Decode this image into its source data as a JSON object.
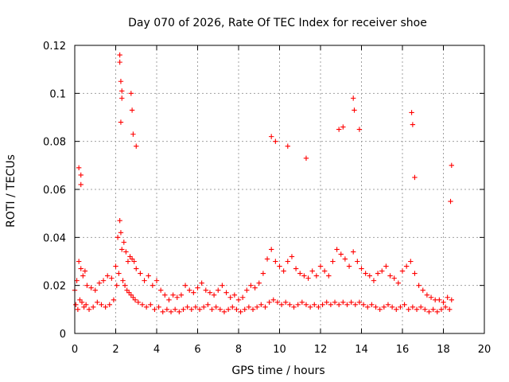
{
  "chart_data": {
    "type": "scatter",
    "title": "Day 070 of 2026, Rate Of TEC Index for receiver shoe",
    "xlabel": "GPS time / hours",
    "ylabel": "ROTI / TECUs",
    "xlim": [
      0,
      20
    ],
    "ylim": [
      0,
      0.12
    ],
    "x_ticks": [
      0,
      2,
      4,
      6,
      8,
      10,
      12,
      14,
      16,
      18,
      20
    ],
    "y_ticks": [
      0,
      0.02,
      0.04,
      0.06,
      0.08,
      0.1,
      0.12
    ],
    "x_tick_labels": [
      "0",
      "2",
      "4",
      "6",
      "8",
      "10",
      "12",
      "14",
      "16",
      "18",
      "20"
    ],
    "y_tick_labels": [
      "0",
      "0.02",
      "0.04",
      "0.06",
      "0.08",
      "0.1",
      "0.12"
    ],
    "grid": true,
    "marker": "+",
    "marker_color": "#ff0000",
    "series": [
      {
        "name": "ROTI",
        "x": [
          0.0,
          0.1,
          0.2,
          0.3,
          0.4,
          0.5,
          0.6,
          0.8,
          1.0,
          1.2,
          1.4,
          1.6,
          1.8,
          2.0,
          2.1,
          2.2,
          2.25,
          2.3,
          2.4,
          2.5,
          2.6,
          2.7,
          2.8,
          2.9,
          3.0,
          3.2,
          3.4,
          3.6,
          3.8,
          4.0,
          4.2,
          4.4,
          4.6,
          4.8,
          5.0,
          5.2,
          5.4,
          5.6,
          5.8,
          6.0,
          6.2,
          6.4,
          6.6,
          6.8,
          7.0,
          7.2,
          7.4,
          7.6,
          7.8,
          8.0,
          8.2,
          8.4,
          8.6,
          8.8,
          9.0,
          9.2,
          9.4,
          9.6,
          9.8,
          10.0,
          10.2,
          10.4,
          10.6,
          10.8,
          11.0,
          11.2,
          11.4,
          11.6,
          11.8,
          12.0,
          12.2,
          12.4,
          12.6,
          12.8,
          13.0,
          13.2,
          13.4,
          13.6,
          13.8,
          14.0,
          14.2,
          14.4,
          14.6,
          14.8,
          15.0,
          15.2,
          15.4,
          15.6,
          15.8,
          16.0,
          16.2,
          16.4,
          16.6,
          16.8,
          17.0,
          17.2,
          17.4,
          17.6,
          17.8,
          18.0,
          18.2,
          18.4,
          0.05,
          0.15,
          0.25,
          0.35,
          0.45,
          0.55,
          0.7,
          0.9,
          1.1,
          1.3,
          1.5,
          1.7,
          1.9,
          2.05,
          2.15,
          2.35,
          2.45,
          2.55,
          2.65,
          2.75,
          2.85,
          2.95,
          3.1,
          3.3,
          3.5,
          3.7,
          3.9,
          4.1,
          4.3,
          4.5,
          4.7,
          4.9,
          5.1,
          5.3,
          5.5,
          5.7,
          5.9,
          6.1,
          6.3,
          6.5,
          6.7,
          6.9,
          7.1,
          7.3,
          7.5,
          7.7,
          7.9,
          8.1,
          8.3,
          8.5,
          8.7,
          8.9,
          9.1,
          9.3,
          9.5,
          9.7,
          9.9,
          10.1,
          10.3,
          10.5,
          10.7,
          10.9,
          11.1,
          11.3,
          11.5,
          11.7,
          11.9,
          12.1,
          12.3,
          12.5,
          12.7,
          12.9,
          13.1,
          13.3,
          13.5,
          13.7,
          13.9,
          14.1,
          14.3,
          14.5,
          14.7,
          14.9,
          15.1,
          15.3,
          15.5,
          15.7,
          15.9,
          16.1,
          16.3,
          16.5,
          16.7,
          16.9,
          17.1,
          17.3,
          17.5,
          17.7,
          17.9,
          18.1,
          18.3,
          0.2,
          0.3,
          0.3,
          2.2,
          2.2,
          2.25,
          2.3,
          2.3,
          2.25,
          2.75,
          2.8,
          2.85,
          3.0,
          9.6,
          9.8,
          10.4,
          11.3,
          12.9,
          13.1,
          13.6,
          13.65,
          13.9,
          16.45,
          16.5,
          16.6,
          18.4,
          18.35
        ],
        "y": [
          0.018,
          0.022,
          0.03,
          0.027,
          0.024,
          0.026,
          0.02,
          0.019,
          0.018,
          0.021,
          0.022,
          0.024,
          0.023,
          0.028,
          0.04,
          0.047,
          0.042,
          0.035,
          0.038,
          0.034,
          0.03,
          0.032,
          0.031,
          0.03,
          0.027,
          0.025,
          0.022,
          0.024,
          0.02,
          0.022,
          0.018,
          0.016,
          0.014,
          0.016,
          0.015,
          0.016,
          0.02,
          0.018,
          0.017,
          0.019,
          0.021,
          0.018,
          0.017,
          0.016,
          0.018,
          0.02,
          0.017,
          0.015,
          0.016,
          0.014,
          0.015,
          0.018,
          0.02,
          0.019,
          0.021,
          0.025,
          0.031,
          0.035,
          0.03,
          0.028,
          0.026,
          0.03,
          0.032,
          0.027,
          0.025,
          0.024,
          0.023,
          0.026,
          0.024,
          0.028,
          0.026,
          0.024,
          0.03,
          0.035,
          0.033,
          0.031,
          0.028,
          0.034,
          0.03,
          0.027,
          0.025,
          0.024,
          0.022,
          0.025,
          0.026,
          0.028,
          0.024,
          0.023,
          0.021,
          0.026,
          0.028,
          0.03,
          0.025,
          0.02,
          0.018,
          0.016,
          0.015,
          0.014,
          0.014,
          0.013,
          0.015,
          0.014,
          0.012,
          0.01,
          0.014,
          0.013,
          0.011,
          0.012,
          0.01,
          0.011,
          0.013,
          0.012,
          0.011,
          0.012,
          0.014,
          0.02,
          0.025,
          0.022,
          0.02,
          0.018,
          0.017,
          0.016,
          0.015,
          0.014,
          0.013,
          0.012,
          0.011,
          0.012,
          0.01,
          0.011,
          0.009,
          0.01,
          0.009,
          0.01,
          0.009,
          0.01,
          0.011,
          0.01,
          0.011,
          0.01,
          0.011,
          0.012,
          0.01,
          0.011,
          0.01,
          0.009,
          0.01,
          0.011,
          0.01,
          0.009,
          0.01,
          0.011,
          0.01,
          0.011,
          0.012,
          0.011,
          0.013,
          0.014,
          0.013,
          0.012,
          0.013,
          0.012,
          0.011,
          0.012,
          0.013,
          0.012,
          0.011,
          0.012,
          0.011,
          0.012,
          0.013,
          0.012,
          0.013,
          0.012,
          0.013,
          0.012,
          0.013,
          0.012,
          0.013,
          0.012,
          0.011,
          0.012,
          0.011,
          0.01,
          0.011,
          0.012,
          0.011,
          0.01,
          0.011,
          0.012,
          0.01,
          0.011,
          0.01,
          0.011,
          0.01,
          0.009,
          0.01,
          0.009,
          0.01,
          0.011,
          0.01,
          0.069,
          0.066,
          0.062,
          0.116,
          0.113,
          0.105,
          0.101,
          0.098,
          0.088,
          0.1,
          0.093,
          0.083,
          0.078,
          0.082,
          0.08,
          0.078,
          0.073,
          0.085,
          0.086,
          0.098,
          0.093,
          0.085,
          0.092,
          0.087,
          0.065,
          0.07,
          0.055
        ]
      }
    ]
  }
}
